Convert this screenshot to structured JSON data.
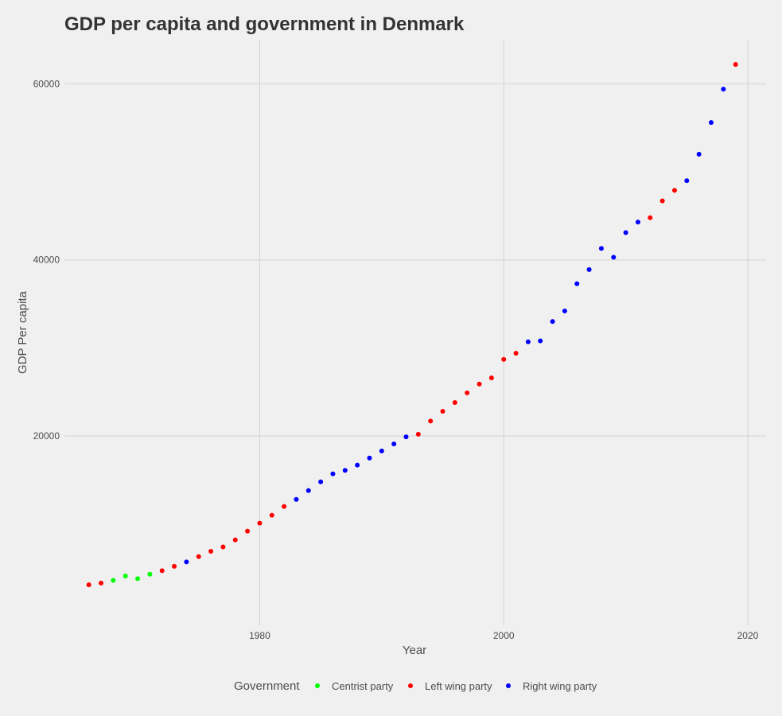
{
  "chart_data": {
    "type": "scatter",
    "title": "GDP per capita and government in Denmark",
    "xlabel": "Year",
    "ylabel": "GDP Per capita",
    "xlim": [
      1964,
      2021.5
    ],
    "ylim": [
      -1500,
      65000
    ],
    "x_ticks": [
      1980,
      2000,
      2020
    ],
    "y_ticks": [
      20000,
      40000,
      60000
    ],
    "x_tick_labels": [
      "1980",
      "2000",
      "2020"
    ],
    "y_tick_labels": [
      "20000",
      "40000",
      "60000"
    ],
    "grid": true,
    "legend": {
      "title": "Government",
      "position": "bottom",
      "entries": [
        {
          "name": "Centrist party",
          "color": "#00ff00"
        },
        {
          "name": "Left wing party",
          "color": "#ff0000"
        },
        {
          "name": "Right wing party",
          "color": "#0000ff"
        }
      ]
    },
    "series": [
      {
        "name": "Centrist party",
        "color": "#00ff00",
        "points": [
          {
            "x": 1968,
            "y": 3600
          },
          {
            "x": 1969,
            "y": 4100
          },
          {
            "x": 1970,
            "y": 3800
          },
          {
            "x": 1971,
            "y": 4300
          }
        ]
      },
      {
        "name": "Left wing party",
        "color": "#ff0000",
        "points": [
          {
            "x": 1966,
            "y": 3100
          },
          {
            "x": 1967,
            "y": 3300
          },
          {
            "x": 1972,
            "y": 4700
          },
          {
            "x": 1973,
            "y": 5200
          },
          {
            "x": 1975,
            "y": 6300
          },
          {
            "x": 1976,
            "y": 6900
          },
          {
            "x": 1977,
            "y": 7400
          },
          {
            "x": 1978,
            "y": 8200
          },
          {
            "x": 1979,
            "y": 9200
          },
          {
            "x": 1980,
            "y": 10100
          },
          {
            "x": 1981,
            "y": 11000
          },
          {
            "x": 1982,
            "y": 12000
          },
          {
            "x": 1993,
            "y": 20200
          },
          {
            "x": 1994,
            "y": 21700
          },
          {
            "x": 1995,
            "y": 22800
          },
          {
            "x": 1996,
            "y": 23800
          },
          {
            "x": 1997,
            "y": 24900
          },
          {
            "x": 1998,
            "y": 25900
          },
          {
            "x": 1999,
            "y": 26600
          },
          {
            "x": 2000,
            "y": 28700
          },
          {
            "x": 2001,
            "y": 29400
          },
          {
            "x": 2012,
            "y": 44800
          },
          {
            "x": 2013,
            "y": 46700
          },
          {
            "x": 2014,
            "y": 47900
          },
          {
            "x": 2019,
            "y": 62200
          }
        ]
      },
      {
        "name": "Right wing party",
        "color": "#0000ff",
        "points": [
          {
            "x": 1974,
            "y": 5700
          },
          {
            "x": 1983,
            "y": 12800
          },
          {
            "x": 1984,
            "y": 13800
          },
          {
            "x": 1985,
            "y": 14800
          },
          {
            "x": 1986,
            "y": 15700
          },
          {
            "x": 1987,
            "y": 16100
          },
          {
            "x": 1988,
            "y": 16700
          },
          {
            "x": 1989,
            "y": 17500
          },
          {
            "x": 1990,
            "y": 18300
          },
          {
            "x": 1991,
            "y": 19100
          },
          {
            "x": 1992,
            "y": 19900
          },
          {
            "x": 2002,
            "y": 30700
          },
          {
            "x": 2003,
            "y": 30800
          },
          {
            "x": 2004,
            "y": 33000
          },
          {
            "x": 2005,
            "y": 34200
          },
          {
            "x": 2006,
            "y": 37300
          },
          {
            "x": 2007,
            "y": 38900
          },
          {
            "x": 2008,
            "y": 41300
          },
          {
            "x": 2009,
            "y": 40300
          },
          {
            "x": 2010,
            "y": 43100
          },
          {
            "x": 2011,
            "y": 44300
          },
          {
            "x": 2015,
            "y": 49000
          },
          {
            "x": 2016,
            "y": 52000
          },
          {
            "x": 2017,
            "y": 55600
          },
          {
            "x": 2018,
            "y": 59400
          }
        ]
      }
    ]
  }
}
